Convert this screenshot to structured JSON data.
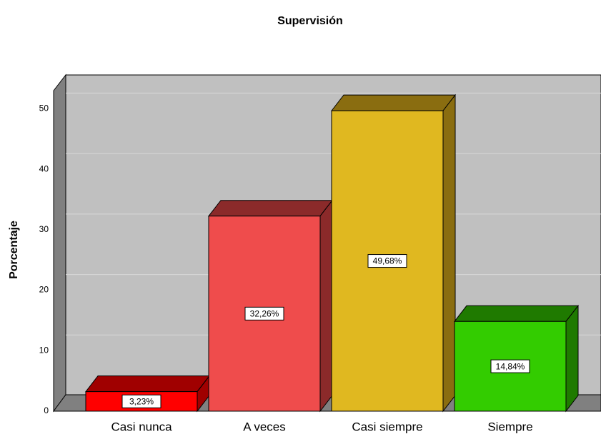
{
  "chart_data": {
    "type": "bar3d",
    "title": "Supervisión",
    "ylabel": "Porcentaje",
    "categories": [
      "Casi nunca",
      "A veces",
      "Casi siempre",
      "Siempre"
    ],
    "values": [
      3.23,
      32.26,
      49.68,
      14.84
    ],
    "value_labels": [
      "3,23%",
      "32,26%",
      "49,68%",
      "14,84%"
    ],
    "colors": [
      "#ff0000",
      "#ef4c4c",
      "#e0b820",
      "#33cc00"
    ],
    "top_colors": [
      "#a00000",
      "#8b2a2a",
      "#8a6d10",
      "#1f7a00"
    ],
    "ylim": [
      0,
      53
    ],
    "yticks": [
      0,
      10,
      20,
      30,
      40,
      50
    ],
    "grid": true
  }
}
